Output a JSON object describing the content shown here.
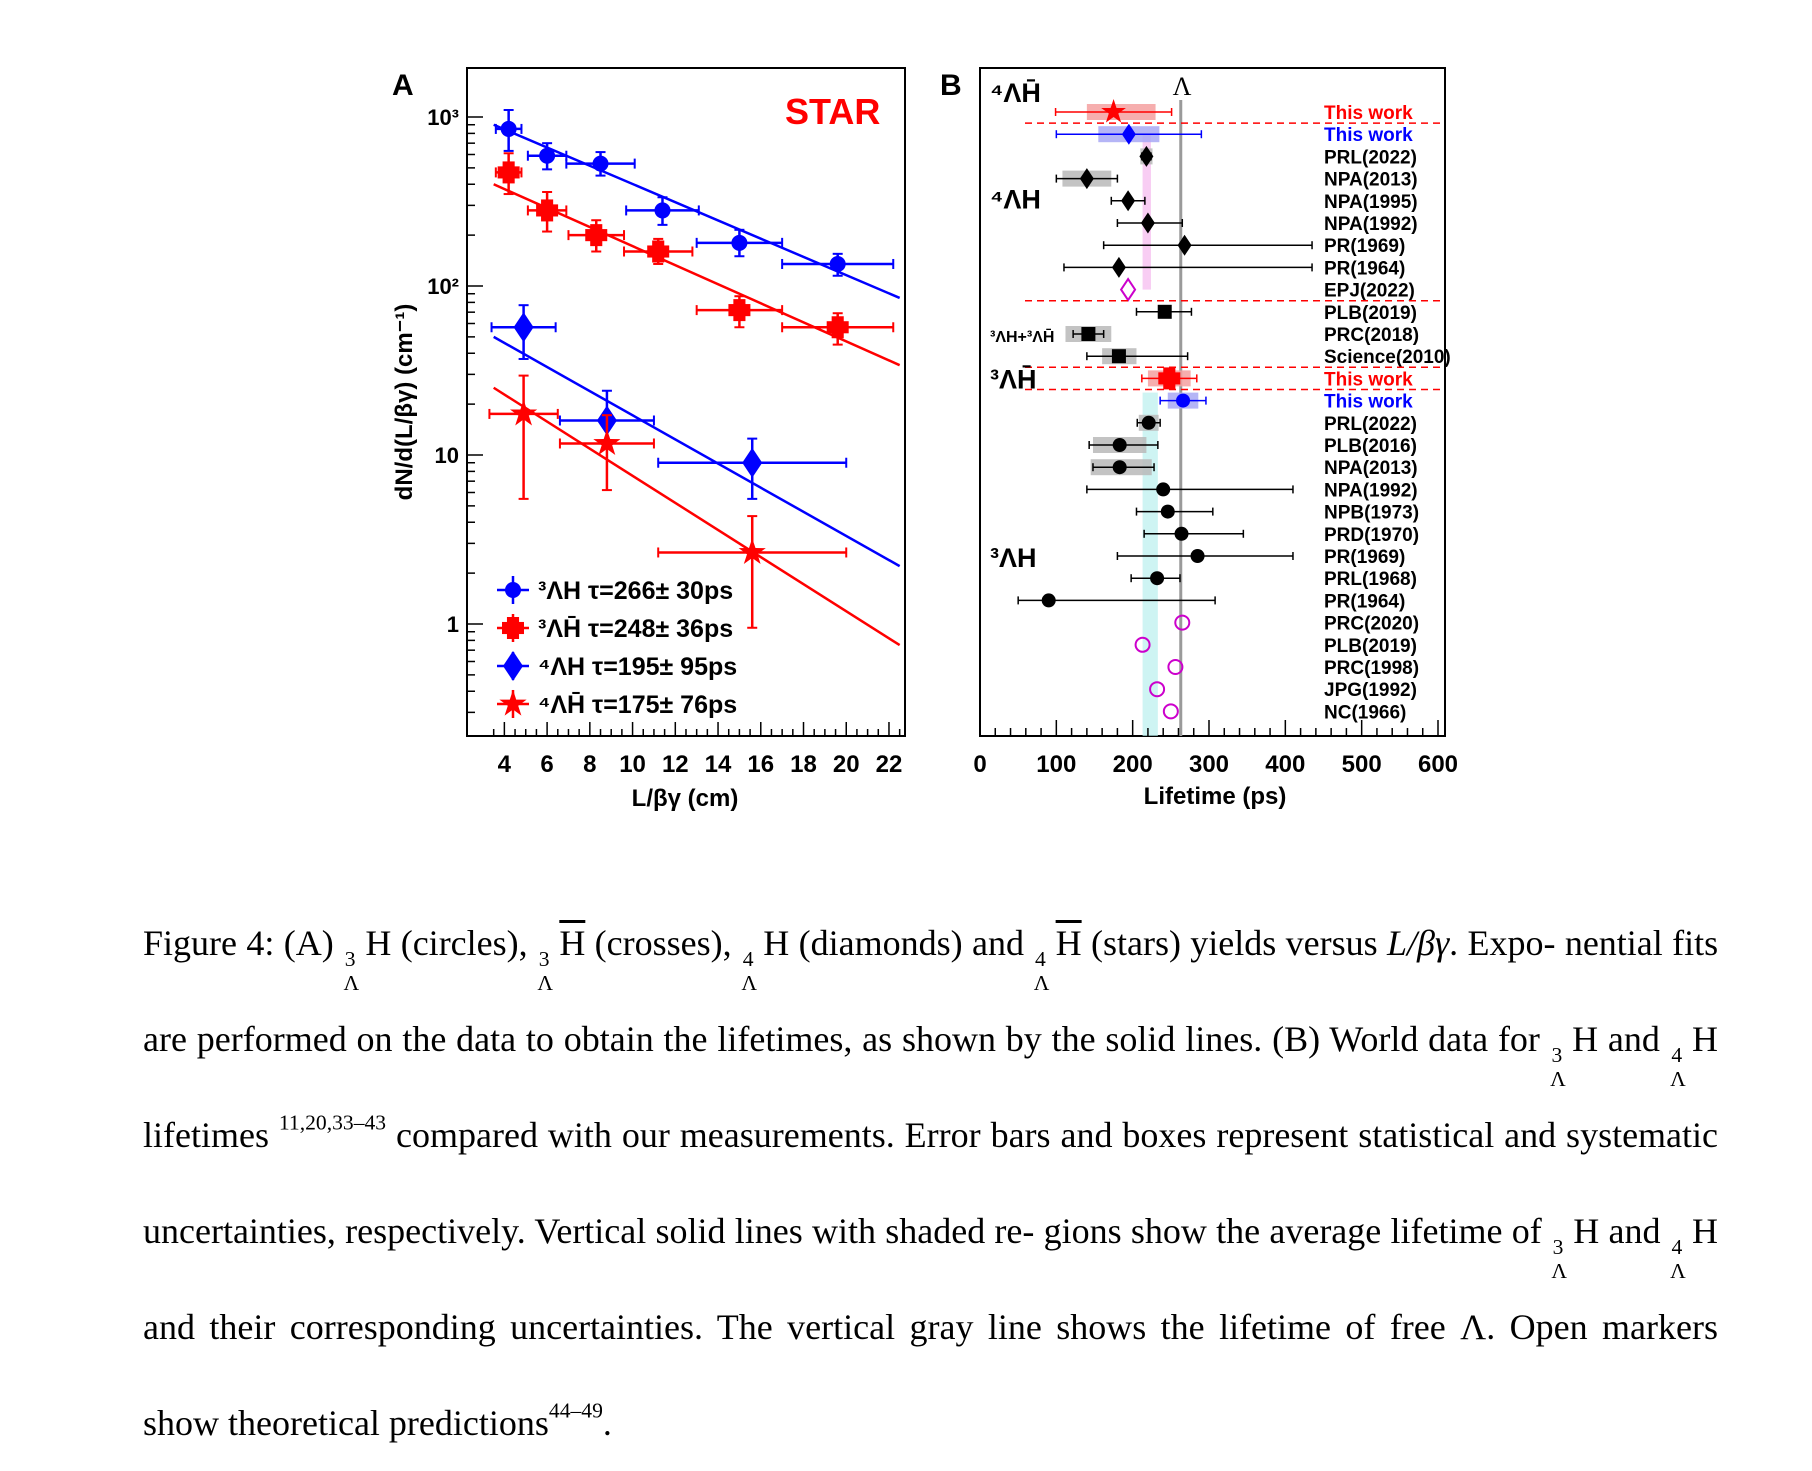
{
  "chart_data": [
    {
      "type": "scatter",
      "panel_label": "A",
      "watermark": "STAR",
      "xlabel": "L/βγ (cm)",
      "ylabel": "dN/d(L/βγ) (cm⁻¹)",
      "xlim": [
        3,
        23
      ],
      "ylim": [
        0.2,
        1500
      ],
      "log_y": true,
      "x_ticks": [
        4,
        6,
        8,
        10,
        12,
        14,
        16,
        18,
        20,
        22
      ],
      "y_tick_labels": [
        "1",
        "10",
        "10²",
        "10³"
      ],
      "legend_position": "bottom-left",
      "series": [
        {
          "name": "³ΛH τ=266± 30ps",
          "marker": "circle",
          "color": "#0000ff",
          "points": [
            {
              "x": 4.2,
              "y": 850,
              "xerr": 0.6,
              "yerr": [
                220,
                250
              ]
            },
            {
              "x": 6.0,
              "y": 590,
              "xerr": 0.9,
              "yerr": [
                100,
                110
              ]
            },
            {
              "x": 8.5,
              "y": 530,
              "xerr": 1.6,
              "yerr": [
                80,
                90
              ]
            },
            {
              "x": 11.4,
              "y": 280,
              "xerr": 1.7,
              "yerr": [
                50,
                55
              ]
            },
            {
              "x": 15.0,
              "y": 180,
              "xerr": 2.0,
              "yerr": [
                30,
                35
              ]
            },
            {
              "x": 19.6,
              "y": 135,
              "xerr": 2.6,
              "yerr": [
                20,
                20
              ]
            }
          ],
          "fit": [
            [
              3.5,
              900
            ],
            [
              22.5,
              85
            ]
          ]
        },
        {
          "name": "³ΛH̄ τ=248± 36ps",
          "marker": "cross",
          "color": "#ff0000",
          "points": [
            {
              "x": 4.2,
              "y": 470,
              "xerr": 0.6,
              "yerr": [
                120,
                140
              ]
            },
            {
              "x": 6.0,
              "y": 280,
              "xerr": 0.9,
              "yerr": [
                70,
                80
              ]
            },
            {
              "x": 8.3,
              "y": 200,
              "xerr": 1.3,
              "yerr": [
                40,
                45
              ]
            },
            {
              "x": 11.2,
              "y": 160,
              "xerr": 1.6,
              "yerr": [
                25,
                30
              ]
            },
            {
              "x": 15.0,
              "y": 72,
              "xerr": 2.0,
              "yerr": [
                15,
                15
              ]
            },
            {
              "x": 19.6,
              "y": 57,
              "xerr": 2.6,
              "yerr": [
                12,
                12
              ]
            }
          ],
          "fit": [
            [
              3.5,
              400
            ],
            [
              22.5,
              34
            ]
          ]
        },
        {
          "name": "⁴ΛH τ=195± 95ps",
          "marker": "diamond",
          "color": "#0000ff",
          "points": [
            {
              "x": 4.9,
              "y": 57,
              "xerr": 1.5,
              "yerr": [
                20,
                20
              ]
            },
            {
              "x": 8.8,
              "y": 16,
              "xerr": 2.2,
              "yerr": [
                5,
                8
              ]
            },
            {
              "x": 15.6,
              "y": 9,
              "xerr": 4.4,
              "yerr": [
                3.5,
                3.5
              ]
            }
          ],
          "fit": [
            [
              3.5,
              50
            ],
            [
              22.5,
              2.2
            ]
          ]
        },
        {
          "name": "⁴ΛH̄ τ=175± 76ps",
          "marker": "star",
          "color": "#ff0000",
          "points": [
            {
              "x": 4.9,
              "y": 17.5,
              "xerr": 1.6,
              "yerr": [
                12,
                12
              ]
            },
            {
              "x": 8.8,
              "y": 11.7,
              "xerr": 2.2,
              "yerr": [
                5.5,
                5.5
              ]
            },
            {
              "x": 15.6,
              "y": 2.65,
              "xerr": 4.4,
              "yerr": [
                1.7,
                1.7
              ]
            }
          ],
          "fit": [
            [
              3.5,
              25
            ],
            [
              22.5,
              0.75
            ]
          ]
        }
      ]
    },
    {
      "type": "scatter",
      "panel_label": "B",
      "xlabel": "Lifetime (ps)",
      "xlim": [
        0,
        610
      ],
      "x_ticks": [
        0,
        100,
        200,
        300,
        400,
        500,
        600
      ],
      "lambda_label": "Λ",
      "lambda_lifetime": 263,
      "avg_4H": {
        "value": 218,
        "band": [
          213,
          224
        ]
      },
      "avg_3H": {
        "value": 223,
        "band": [
          213,
          233
        ]
      },
      "group_labels": [
        "⁴ΛH̄",
        "⁴ΛH",
        "³ΛH+³ΛH̄",
        "³ΛH̄",
        "³ΛH"
      ],
      "rows": [
        {
          "label": "This work",
          "color": "#ff0000",
          "marker": "star",
          "x": 175,
          "lo": 99,
          "hi": 251,
          "sys": [
            140,
            230
          ]
        },
        {
          "label": "This work",
          "color": "#0000ff",
          "marker": "diamond",
          "x": 195,
          "lo": 100,
          "hi": 290,
          "sys": [
            155,
            235
          ]
        },
        {
          "label": "PRL(2022)",
          "color": "#000000",
          "marker": "diamond",
          "x": 218,
          "lo": 212,
          "hi": 224,
          "sys": [
            210,
            226
          ]
        },
        {
          "label": "NPA(2013)",
          "color": "#000000",
          "marker": "diamond",
          "x": 140,
          "lo": 100,
          "hi": 180,
          "sys": [
            108,
            172
          ]
        },
        {
          "label": "NPA(1995)",
          "color": "#000000",
          "marker": "diamond",
          "x": 194,
          "lo": 172,
          "hi": 216
        },
        {
          "label": "NPA(1992)",
          "color": "#000000",
          "marker": "diamond",
          "x": 220,
          "lo": 180,
          "hi": 265
        },
        {
          "label": "PR(1969)",
          "color": "#000000",
          "marker": "diamond",
          "x": 268,
          "lo": 162,
          "hi": 435
        },
        {
          "label": "PR(1964)",
          "color": "#000000",
          "marker": "diamond",
          "x": 182,
          "lo": 110,
          "hi": 435
        },
        {
          "label": "EPJ(2022)",
          "color": "#cc00cc",
          "marker": "open-diamond",
          "x": 194
        },
        {
          "label": "PLB(2019)",
          "color": "#000000",
          "marker": "square",
          "x": 242,
          "lo": 205,
          "hi": 277
        },
        {
          "label": "PRC(2018)",
          "color": "#000000",
          "marker": "square",
          "x": 142,
          "lo": 122,
          "hi": 162,
          "sys": [
            112,
            172
          ]
        },
        {
          "label": "Science(2010)",
          "color": "#000000",
          "marker": "square",
          "x": 182,
          "lo": 140,
          "hi": 272,
          "sys": [
            160,
            205
          ]
        },
        {
          "label": "This work",
          "color": "#ff0000",
          "marker": "cross",
          "x": 248,
          "lo": 212,
          "hi": 284,
          "sys": [
            220,
            276
          ]
        },
        {
          "label": "This work",
          "color": "#0000ff",
          "marker": "circle",
          "x": 266,
          "lo": 236,
          "hi": 296,
          "sys": [
            246,
            286
          ]
        },
        {
          "label": "PRL(2022)",
          "color": "#000000",
          "marker": "circle",
          "x": 221,
          "lo": 206,
          "hi": 236,
          "sys": [
            208,
            234
          ]
        },
        {
          "label": "PLB(2016)",
          "color": "#000000",
          "marker": "circle",
          "x": 183,
          "lo": 143,
          "hi": 233,
          "sys": [
            148,
            218
          ]
        },
        {
          "label": "NPA(2013)",
          "color": "#000000",
          "marker": "circle",
          "x": 183,
          "lo": 148,
          "hi": 228,
          "sys": [
            145,
            225
          ]
        },
        {
          "label": "NPA(1992)",
          "color": "#000000",
          "marker": "circle",
          "x": 240,
          "lo": 140,
          "hi": 410
        },
        {
          "label": "NPB(1973)",
          "color": "#000000",
          "marker": "circle",
          "x": 246,
          "lo": 205,
          "hi": 305
        },
        {
          "label": "PRD(1970)",
          "color": "#000000",
          "marker": "circle",
          "x": 264,
          "lo": 215,
          "hi": 345
        },
        {
          "label": "PR(1969)",
          "color": "#000000",
          "marker": "circle",
          "x": 285,
          "lo": 180,
          "hi": 410
        },
        {
          "label": "PRL(1968)",
          "color": "#000000",
          "marker": "circle",
          "x": 232,
          "lo": 198,
          "hi": 262
        },
        {
          "label": "PR(1964)",
          "color": "#000000",
          "marker": "circle",
          "x": 90,
          "lo": 50,
          "hi": 308
        },
        {
          "label": "PRC(2020)",
          "color": "#cc00cc",
          "marker": "open-circle",
          "x": 265
        },
        {
          "label": "PLB(2019)",
          "color": "#cc00cc",
          "marker": "open-circle",
          "x": 213
        },
        {
          "label": "PRC(1998)",
          "color": "#cc00cc",
          "marker": "open-circle",
          "x": 256
        },
        {
          "label": "JPG(1992)",
          "color": "#cc00cc",
          "marker": "open-circle",
          "x": 232
        },
        {
          "label": "NC(1966)",
          "color": "#cc00cc",
          "marker": "open-circle",
          "x": 250
        }
      ],
      "dashed_separators_after_rows": [
        0,
        8,
        11,
        12
      ]
    }
  ],
  "caption": {
    "figure_label": "Figure 4:",
    "segments": [
      "(A)",
      "(circles),",
      "(crosses),",
      "(diamonds) and",
      "(stars) yields versus",
      "L/βγ",
      ". Expo-",
      "nential fits are performed on the data to obtain the lifetimes, as shown by the solid lines. (B) World",
      "data for",
      "and",
      "lifetimes",
      "11,20,33–43",
      "compared with our measurements. Error bars and boxes",
      "represent statistical and systematic uncertainties, respectively. Vertical solid lines with shaded re-",
      "gions show the average lifetime of",
      "and",
      "and their corresponding uncertainties. The vertical",
      "gray line shows the lifetime of free Λ. Open markers show theoretical predictions",
      "44–49",
      "."
    ],
    "iso": {
      "a3": "3",
      "a4": "4",
      "lam": "Λ",
      "H": "H"
    }
  }
}
